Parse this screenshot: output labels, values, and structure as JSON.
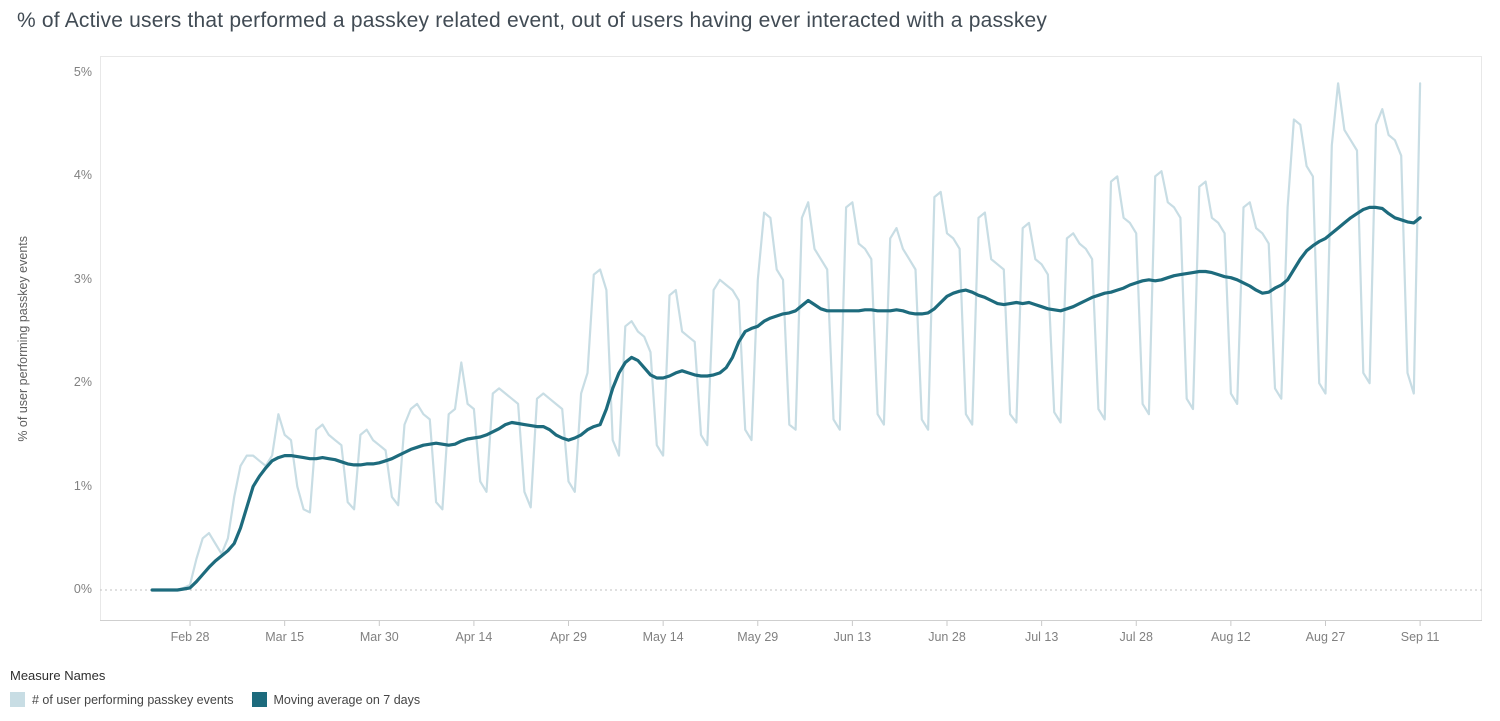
{
  "title": "% of Active users that performed a passkey related event, out of users having ever interacted with a passkey",
  "y_axis": {
    "label": "% of user performing passkey events",
    "ticks": [
      "0%",
      "1%",
      "2%",
      "3%",
      "4%",
      "5%"
    ]
  },
  "x_axis": {
    "ticks": [
      "Feb 28",
      "Mar 15",
      "Mar 30",
      "Apr 14",
      "Apr 29",
      "May 14",
      "May 29",
      "Jun 13",
      "Jun 28",
      "Jul 13",
      "Jul 28",
      "Aug 12",
      "Aug 27",
      "Sep 11"
    ]
  },
  "legend": {
    "title": "Measure Names",
    "items": [
      {
        "label": "# of user performing passkey events",
        "color": "#c8dde4"
      },
      {
        "label": "Moving average on 7 days",
        "color": "#1d6b7d"
      }
    ]
  },
  "chart_data": {
    "type": "line",
    "title": "% of Active users that performed a passkey related event, out of users having ever interacted with a passkey",
    "ylabel": "% of user performing passkey events",
    "y_unit": "%",
    "ylim": [
      0,
      5
    ],
    "grid": "none",
    "zero_line_dotted": true,
    "legend_position": "bottom-left",
    "x_start": "Feb 22",
    "x_cadence": "daily",
    "x_tick_labels": [
      "Feb 28",
      "Mar 15",
      "Mar 30",
      "Apr 14",
      "Apr 29",
      "May 14",
      "May 29",
      "Jun 13",
      "Jun 28",
      "Jul 13",
      "Jul 28",
      "Aug 12",
      "Aug 27",
      "Sep 11"
    ],
    "x_tick_day_indices": [
      6,
      21,
      36,
      51,
      66,
      81,
      96,
      111,
      126,
      141,
      156,
      171,
      186,
      201
    ],
    "series": [
      {
        "name": "# of user performing passkey events",
        "color": "#c8dde4",
        "values": [
          0,
          0,
          0,
          0,
          0,
          0.02,
          0.05,
          0.3,
          0.5,
          0.55,
          0.45,
          0.35,
          0.5,
          0.9,
          1.2,
          1.3,
          1.3,
          1.25,
          1.2,
          1.3,
          1.7,
          1.5,
          1.45,
          1.0,
          0.78,
          0.75,
          1.55,
          1.6,
          1.5,
          1.45,
          1.4,
          0.85,
          0.78,
          1.5,
          1.55,
          1.45,
          1.4,
          1.35,
          0.9,
          0.82,
          1.6,
          1.75,
          1.8,
          1.7,
          1.65,
          0.85,
          0.78,
          1.7,
          1.75,
          2.2,
          1.8,
          1.75,
          1.05,
          0.95,
          1.9,
          1.95,
          1.9,
          1.85,
          1.8,
          0.95,
          0.8,
          1.85,
          1.9,
          1.85,
          1.8,
          1.75,
          1.05,
          0.95,
          1.9,
          2.1,
          3.05,
          3.1,
          2.9,
          1.45,
          1.3,
          2.55,
          2.6,
          2.5,
          2.45,
          2.3,
          1.4,
          1.3,
          2.85,
          2.9,
          2.5,
          2.45,
          2.4,
          1.5,
          1.4,
          2.9,
          3.0,
          2.95,
          2.9,
          2.8,
          1.55,
          1.45,
          3.0,
          3.65,
          3.6,
          3.1,
          3.0,
          1.6,
          1.55,
          3.6,
          3.75,
          3.3,
          3.2,
          3.1,
          1.65,
          1.55,
          3.7,
          3.75,
          3.35,
          3.3,
          3.2,
          1.7,
          1.6,
          3.4,
          3.5,
          3.3,
          3.2,
          3.1,
          1.65,
          1.55,
          3.8,
          3.85,
          3.45,
          3.4,
          3.3,
          1.7,
          1.6,
          3.6,
          3.65,
          3.2,
          3.15,
          3.1,
          1.7,
          1.62,
          3.5,
          3.55,
          3.2,
          3.15,
          3.05,
          1.72,
          1.62,
          3.4,
          3.45,
          3.35,
          3.3,
          3.2,
          1.75,
          1.65,
          3.95,
          4.0,
          3.6,
          3.55,
          3.45,
          1.8,
          1.7,
          4.0,
          4.05,
          3.75,
          3.7,
          3.6,
          1.85,
          1.75,
          3.9,
          3.95,
          3.6,
          3.55,
          3.45,
          1.9,
          1.8,
          3.7,
          3.75,
          3.5,
          3.45,
          3.35,
          1.95,
          1.85,
          3.7,
          4.55,
          4.5,
          4.1,
          4.0,
          2.0,
          1.9,
          4.3,
          4.9,
          4.45,
          4.35,
          4.25,
          2.1,
          2.0,
          4.5,
          4.65,
          4.4,
          4.35,
          4.2,
          2.1,
          1.9,
          4.9
        ]
      },
      {
        "name": "Moving average on 7 days",
        "color": "#1d6b7d",
        "values": [
          0,
          0,
          0,
          0,
          0,
          0.01,
          0.02,
          0.08,
          0.15,
          0.22,
          0.28,
          0.33,
          0.38,
          0.45,
          0.6,
          0.8,
          1.0,
          1.1,
          1.18,
          1.25,
          1.28,
          1.3,
          1.3,
          1.29,
          1.28,
          1.27,
          1.27,
          1.28,
          1.27,
          1.26,
          1.24,
          1.22,
          1.21,
          1.21,
          1.22,
          1.22,
          1.23,
          1.25,
          1.27,
          1.3,
          1.33,
          1.36,
          1.38,
          1.4,
          1.41,
          1.42,
          1.41,
          1.4,
          1.41,
          1.44,
          1.46,
          1.47,
          1.48,
          1.5,
          1.53,
          1.56,
          1.6,
          1.62,
          1.61,
          1.6,
          1.59,
          1.58,
          1.58,
          1.55,
          1.5,
          1.47,
          1.45,
          1.47,
          1.5,
          1.55,
          1.58,
          1.6,
          1.75,
          1.95,
          2.1,
          2.2,
          2.25,
          2.22,
          2.15,
          2.08,
          2.05,
          2.05,
          2.07,
          2.1,
          2.12,
          2.1,
          2.08,
          2.07,
          2.07,
          2.08,
          2.1,
          2.15,
          2.25,
          2.4,
          2.5,
          2.53,
          2.55,
          2.6,
          2.63,
          2.65,
          2.67,
          2.68,
          2.7,
          2.75,
          2.8,
          2.76,
          2.72,
          2.7,
          2.7,
          2.7,
          2.7,
          2.7,
          2.7,
          2.71,
          2.71,
          2.7,
          2.7,
          2.7,
          2.71,
          2.7,
          2.68,
          2.67,
          2.67,
          2.68,
          2.72,
          2.78,
          2.84,
          2.87,
          2.89,
          2.9,
          2.88,
          2.85,
          2.83,
          2.8,
          2.77,
          2.76,
          2.77,
          2.78,
          2.77,
          2.78,
          2.76,
          2.74,
          2.72,
          2.71,
          2.7,
          2.72,
          2.74,
          2.77,
          2.8,
          2.83,
          2.85,
          2.87,
          2.88,
          2.9,
          2.92,
          2.95,
          2.97,
          2.99,
          3.0,
          2.99,
          3.0,
          3.02,
          3.04,
          3.05,
          3.06,
          3.07,
          3.08,
          3.08,
          3.07,
          3.05,
          3.03,
          3.02,
          3.0,
          2.97,
          2.94,
          2.9,
          2.87,
          2.88,
          2.92,
          2.95,
          3.0,
          3.1,
          3.2,
          3.28,
          3.33,
          3.37,
          3.4,
          3.45,
          3.5,
          3.55,
          3.6,
          3.64,
          3.68,
          3.7,
          3.7,
          3.69,
          3.64,
          3.6,
          3.58,
          3.56,
          3.55,
          3.6
        ]
      }
    ]
  }
}
